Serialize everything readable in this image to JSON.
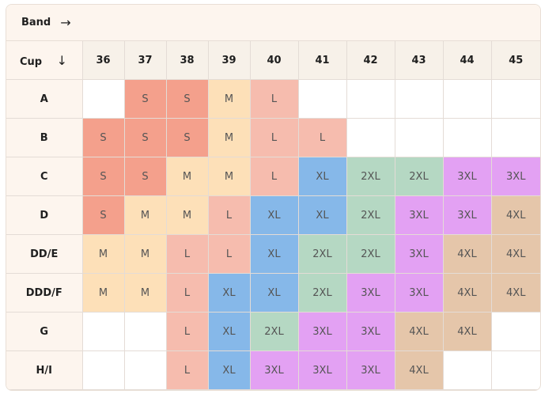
{
  "band": {
    "label": "Band",
    "arrow": "→"
  },
  "cup": {
    "label": "Cup",
    "arrow": "↓"
  },
  "bands": [
    "36",
    "37",
    "38",
    "39",
    "40",
    "41",
    "42",
    "43",
    "44",
    "45"
  ],
  "colors": {
    "S": "#f4a08c",
    "M": "#fde0b8",
    "L": "#f6bcae",
    "XL": "#86b8e9",
    "2XL": "#b5d8c3",
    "3XL": "#e3a1f3",
    "4XL": "#e5c6aa"
  },
  "rows": [
    {
      "cup": "A",
      "sizes": [
        "",
        "S",
        "S",
        "M",
        "L",
        "",
        "",
        "",
        "",
        ""
      ]
    },
    {
      "cup": "B",
      "sizes": [
        "S",
        "S",
        "S",
        "M",
        "L",
        "L",
        "",
        "",
        "",
        ""
      ]
    },
    {
      "cup": "C",
      "sizes": [
        "S",
        "S",
        "M",
        "M",
        "L",
        "XL",
        "2XL",
        "2XL",
        "3XL",
        "3XL"
      ]
    },
    {
      "cup": "D",
      "sizes": [
        "S",
        "M",
        "M",
        "L",
        "XL",
        "XL",
        "2XL",
        "3XL",
        "3XL",
        "4XL"
      ]
    },
    {
      "cup": "DD/E",
      "sizes": [
        "M",
        "M",
        "L",
        "L",
        "XL",
        "2XL",
        "2XL",
        "3XL",
        "4XL",
        "4XL"
      ]
    },
    {
      "cup": "DDD/F",
      "sizes": [
        "M",
        "M",
        "L",
        "XL",
        "XL",
        "2XL",
        "3XL",
        "3XL",
        "4XL",
        "4XL"
      ]
    },
    {
      "cup": "G",
      "sizes": [
        "",
        "",
        "L",
        "XL",
        "2XL",
        "3XL",
        "3XL",
        "4XL",
        "4XL",
        ""
      ]
    },
    {
      "cup": "H/I",
      "sizes": [
        "",
        "",
        "L",
        "XL",
        "3XL",
        "3XL",
        "3XL",
        "4XL",
        "",
        ""
      ]
    }
  ]
}
